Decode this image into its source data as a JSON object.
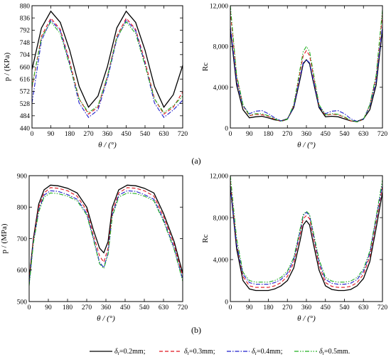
{
  "chart_data": [
    {
      "panel": "(a)",
      "type": "line",
      "xlabel": "θ / (°)",
      "ylabel": "p / (KPa)",
      "xlim": [
        0,
        720
      ],
      "ylim": [
        440,
        880
      ],
      "xticks": [
        0,
        90,
        180,
        270,
        360,
        450,
        540,
        630,
        720
      ],
      "yticks": [
        440,
        484,
        528,
        572,
        616,
        660,
        704,
        748,
        792,
        836,
        880
      ],
      "ytick_labels": [
        "440",
        "484",
        "528",
        "572",
        "616",
        "660",
        "704",
        "748",
        "792",
        "836",
        "880"
      ],
      "x": [
        0,
        45,
        90,
        135,
        180,
        225,
        270,
        315,
        360,
        405,
        450,
        495,
        540,
        585,
        630,
        675,
        720
      ],
      "series": [
        {
          "key": "s1",
          "values": [
            650,
            800,
            860,
            820,
            720,
            590,
            515,
            555,
            660,
            800,
            860,
            820,
            720,
            590,
            515,
            560,
            665
          ]
        },
        {
          "key": "s2",
          "values": [
            585,
            770,
            835,
            795,
            680,
            545,
            490,
            515,
            625,
            770,
            835,
            795,
            680,
            545,
            490,
            515,
            570
          ]
        },
        {
          "key": "s3",
          "values": [
            530,
            755,
            828,
            790,
            670,
            530,
            478,
            505,
            615,
            760,
            828,
            790,
            670,
            530,
            478,
            505,
            540
          ]
        },
        {
          "key": "s4",
          "values": [
            590,
            765,
            822,
            780,
            665,
            545,
            495,
            520,
            625,
            765,
            822,
            780,
            665,
            545,
            495,
            520,
            555
          ]
        }
      ]
    },
    {
      "panel": "(a)",
      "type": "line",
      "xlabel": "θ / (°)",
      "ylabel": "Rc",
      "xlim": [
        0,
        720
      ],
      "ylim": [
        0,
        12000
      ],
      "xticks": [
        0,
        90,
        180,
        270,
        360,
        450,
        540,
        630,
        720
      ],
      "yticks": [
        0,
        4000,
        8000,
        12000
      ],
      "ytick_labels": [
        "0",
        "4,000",
        "8,000",
        "12,000"
      ],
      "x": [
        0,
        30,
        60,
        90,
        120,
        150,
        180,
        210,
        240,
        270,
        300,
        330,
        345,
        360,
        375,
        390,
        420,
        450,
        480,
        510,
        540,
        570,
        600,
        630,
        660,
        690,
        720
      ],
      "series": [
        {
          "key": "s1",
          "values": [
            9700,
            4200,
            1800,
            1000,
            1100,
            1150,
            1000,
            800,
            700,
            900,
            2000,
            4800,
            6300,
            6700,
            6300,
            4800,
            2000,
            1100,
            1150,
            1100,
            900,
            700,
            650,
            900,
            1800,
            4200,
            9700
          ]
        },
        {
          "key": "s2",
          "values": [
            11500,
            5000,
            2200,
            1200,
            1350,
            1300,
            1150,
            850,
            650,
            850,
            2200,
            5500,
            7100,
            7600,
            7100,
            5500,
            2200,
            1250,
            1350,
            1300,
            1050,
            700,
            600,
            850,
            2200,
            5000,
            11200
          ]
        },
        {
          "key": "s3",
          "values": [
            10000,
            4600,
            2200,
            1400,
            1650,
            1700,
            1400,
            1000,
            700,
            850,
            2100,
            5000,
            6400,
            6700,
            6400,
            5000,
            2100,
            1400,
            1650,
            1700,
            1400,
            900,
            650,
            850,
            2200,
            4600,
            10000
          ]
        },
        {
          "key": "s4",
          "values": [
            12000,
            5200,
            2300,
            1250,
            1400,
            1400,
            1200,
            900,
            650,
            850,
            2300,
            5800,
            7500,
            8000,
            7500,
            5800,
            2300,
            1300,
            1400,
            1350,
            1100,
            750,
            600,
            850,
            2300,
            5200,
            11600
          ]
        }
      ]
    },
    {
      "panel": "(b)",
      "type": "line",
      "xlabel": "θ / (°)",
      "ylabel": "p / (MPa)",
      "xlim": [
        0,
        720
      ],
      "ylim": [
        500,
        900
      ],
      "xticks": [
        0,
        90,
        180,
        270,
        360,
        450,
        540,
        630,
        720
      ],
      "yticks": [
        500,
        600,
        700,
        800,
        900
      ],
      "ytick_labels": [
        "500",
        "600",
        "700",
        "800",
        "900"
      ],
      "x": [
        0,
        20,
        45,
        70,
        100,
        135,
        180,
        225,
        270,
        300,
        330,
        350,
        370,
        390,
        420,
        460,
        500,
        540,
        585,
        630,
        680,
        720
      ],
      "series": [
        {
          "key": "s1",
          "values": [
            570,
            700,
            810,
            855,
            870,
            868,
            860,
            845,
            800,
            730,
            670,
            655,
            690,
            800,
            855,
            870,
            868,
            860,
            845,
            780,
            690,
            590
          ]
        },
        {
          "key": "s2",
          "values": [
            565,
            695,
            800,
            845,
            862,
            860,
            852,
            835,
            790,
            715,
            645,
            625,
            670,
            785,
            845,
            862,
            860,
            852,
            835,
            770,
            680,
            580
          ]
        },
        {
          "key": "s3",
          "values": [
            555,
            690,
            790,
            838,
            852,
            850,
            840,
            825,
            780,
            705,
            625,
            608,
            655,
            775,
            838,
            852,
            850,
            840,
            825,
            760,
            670,
            570
          ]
        },
        {
          "key": "s4",
          "values": [
            550,
            685,
            785,
            832,
            845,
            843,
            835,
            820,
            775,
            700,
            620,
            605,
            650,
            770,
            832,
            845,
            843,
            835,
            820,
            755,
            665,
            565
          ]
        }
      ]
    },
    {
      "panel": "(b)",
      "type": "line",
      "xlabel": "θ / (°)",
      "ylabel": "Rc",
      "xlim": [
        0,
        720
      ],
      "ylim": [
        0,
        12000
      ],
      "xticks": [
        0,
        90,
        180,
        270,
        360,
        450,
        540,
        630,
        720
      ],
      "yticks": [
        0,
        4000,
        8000,
        12000
      ],
      "ytick_labels": [
        "0",
        "4,000",
        "8,000",
        "12,000"
      ],
      "x": [
        0,
        30,
        60,
        90,
        120,
        150,
        180,
        210,
        240,
        270,
        300,
        330,
        345,
        360,
        375,
        390,
        420,
        450,
        480,
        510,
        540,
        570,
        600,
        630,
        660,
        690,
        720
      ],
      "series": [
        {
          "key": "s1",
          "values": [
            11000,
            5000,
            2000,
            1200,
            1050,
            1050,
            1050,
            1200,
            1500,
            2000,
            3200,
            5800,
            7300,
            7700,
            7300,
            5800,
            3000,
            1500,
            1150,
            1050,
            1050,
            1150,
            1500,
            2200,
            3800,
            7000,
            10400
          ]
        },
        {
          "key": "s2",
          "values": [
            11500,
            5500,
            2400,
            1500,
            1350,
            1350,
            1350,
            1500,
            1800,
            2400,
            3700,
            6400,
            7900,
            8200,
            7900,
            6400,
            3500,
            1800,
            1450,
            1350,
            1350,
            1450,
            1800,
            2600,
            4300,
            7600,
            11000
          ]
        },
        {
          "key": "s3",
          "values": [
            11000,
            5400,
            2600,
            1800,
            1650,
            1650,
            1650,
            1800,
            2100,
            2700,
            4000,
            6700,
            8200,
            8500,
            8200,
            6700,
            3800,
            2100,
            1750,
            1650,
            1650,
            1750,
            2100,
            2900,
            4600,
            7900,
            11200
          ]
        },
        {
          "key": "s4",
          "values": [
            12000,
            6000,
            2800,
            2000,
            1850,
            1850,
            1850,
            2000,
            2300,
            2900,
            4200,
            6900,
            8300,
            8600,
            8300,
            6900,
            4000,
            2300,
            1950,
            1850,
            1850,
            1950,
            2300,
            3100,
            4800,
            8100,
            11600
          ]
        }
      ]
    }
  ],
  "captions": {
    "a": "(a)",
    "b": "(b)"
  },
  "legend": [
    {
      "key": "s1",
      "symbol": "δ",
      "sub": "r",
      "text": "=0.2mm;",
      "color": "#000000",
      "dash": "none"
    },
    {
      "key": "s2",
      "symbol": "δ",
      "sub": "r",
      "text": "=0.3mm;",
      "color": "#e0141e",
      "dash": "5,3"
    },
    {
      "key": "s3",
      "symbol": "δ",
      "sub": "r",
      "text": "=0.4mm;",
      "color": "#1e1ecc",
      "dash": "6,2,1.5,2"
    },
    {
      "key": "s4",
      "symbol": "δ",
      "sub": "r",
      "text": "=0.5mm.",
      "color": "#22b022",
      "dash": "6,2,1.5,2,1.5,2"
    }
  ]
}
